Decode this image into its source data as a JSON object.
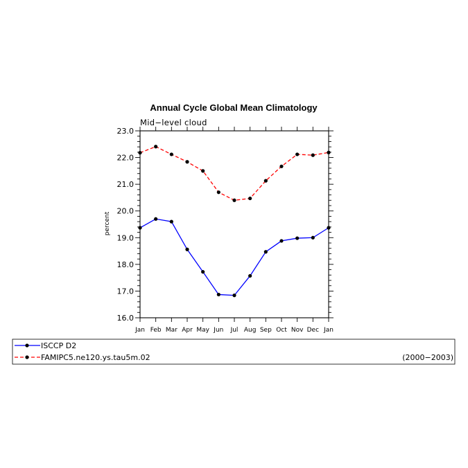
{
  "chart_data": {
    "type": "line",
    "title": "Annual Cycle Global Mean Climatology",
    "subtitle": "Mid−level cloud",
    "ylabel": "percent",
    "xlabel": "",
    "categories": [
      "Jan",
      "Feb",
      "Mar",
      "Apr",
      "May",
      "Jun",
      "Jul",
      "Aug",
      "Sep",
      "Oct",
      "Nov",
      "Dec",
      "Jan"
    ],
    "ylim": [
      16.0,
      23.0
    ],
    "yticks": [
      "16.0",
      "17.0",
      "18.0",
      "19.0",
      "20.0",
      "21.0",
      "22.0",
      "23.0"
    ],
    "grid": false,
    "legend_position": "bottom",
    "period_label": "(2000−2003)",
    "series": [
      {
        "name": "ISCCP D2",
        "color": "#0000ff",
        "line_style": "solid",
        "marker": "dot",
        "values": [
          19.37,
          19.7,
          19.6,
          18.56,
          17.72,
          16.87,
          16.84,
          17.57,
          18.47,
          18.88,
          18.98,
          19.0,
          19.37
        ]
      },
      {
        "name": "FAMIPC5.ne120.ys.tau5m.02",
        "color": "#ff0000",
        "line_style": "dashed",
        "marker": "dot",
        "values": [
          22.18,
          22.41,
          22.12,
          21.84,
          21.5,
          20.7,
          20.4,
          20.47,
          21.13,
          21.67,
          22.12,
          22.09,
          22.19
        ]
      }
    ]
  }
}
